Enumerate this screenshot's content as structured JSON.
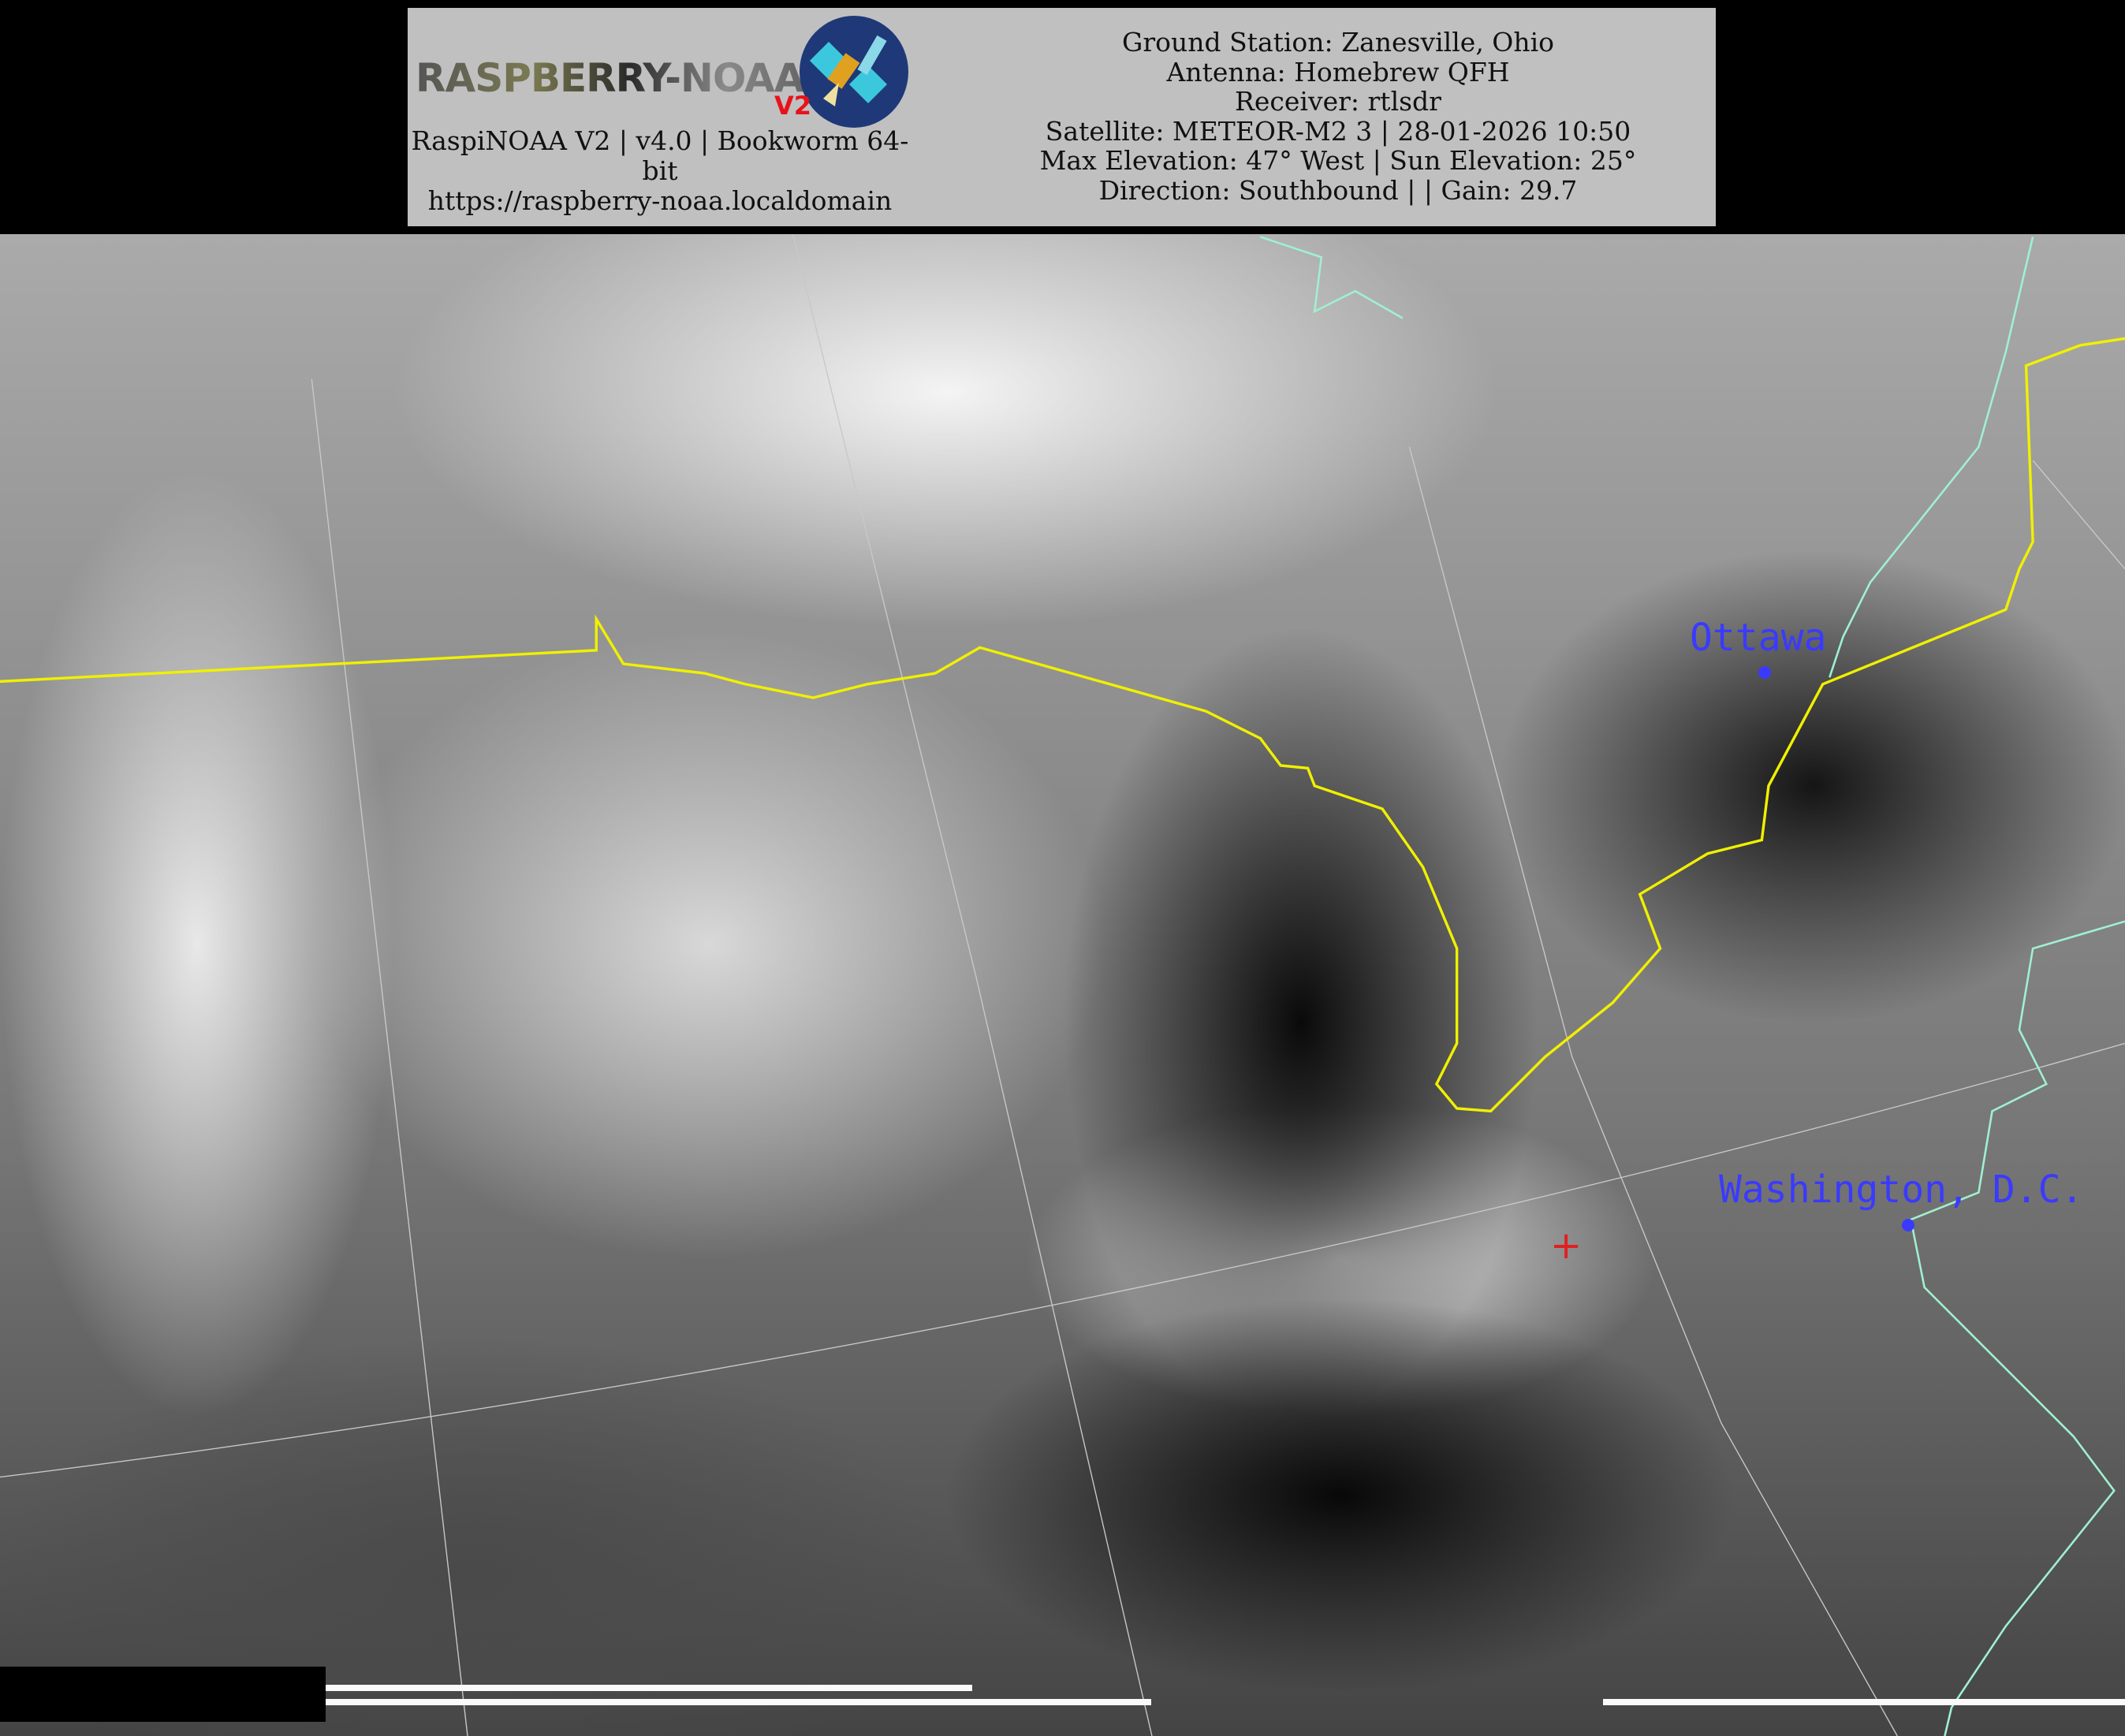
{
  "header": {
    "logo": {
      "text": "RASPBERRY-NOAA",
      "badge": "V2",
      "icon": "satellite-icon"
    },
    "left_info": [
      "RaspiNOAA V2 | v4.0 | Bookworm 64-",
      "bit",
      "https://raspberry-noaa.localdomain"
    ],
    "right_info": [
      "Ground Station: Zanesville, Ohio",
      "Antenna: Homebrew QFH",
      "Receiver: rtlsdr",
      "Satellite: METEOR-M2 3 | 28-01-2026 10:50",
      "Max Elevation: 47° West | Sun Elevation: 25°",
      "Direction: Southbound | | Gain: 29.7"
    ]
  },
  "map": {
    "cities": [
      {
        "name": "Ottawa"
      },
      {
        "name": "Washington, D.C."
      }
    ],
    "ground_station_marker": "red-cross",
    "colors": {
      "border": "#f0f000",
      "coastline": "#a0f0d0",
      "city": "#3a3aff",
      "marker": "#e02020",
      "grid": "#c8c8c8"
    }
  }
}
